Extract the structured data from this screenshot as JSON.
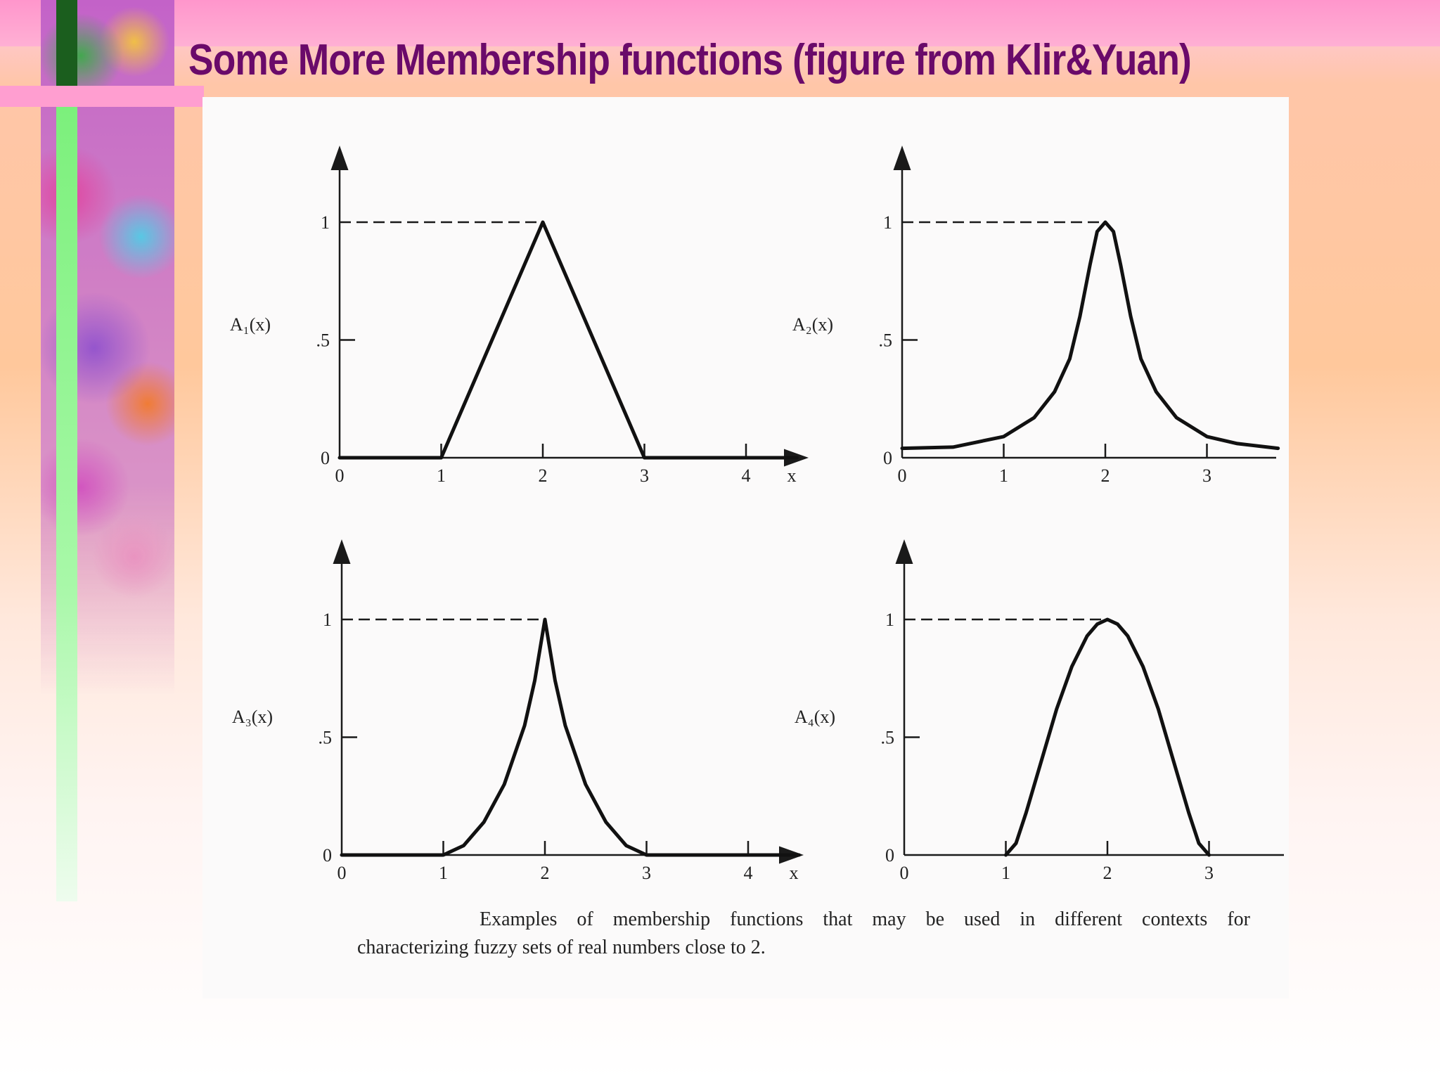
{
  "slide": {
    "title": "Some More Membership functions (figure from Klir&Yuan)"
  },
  "figure": {
    "caption_line1": "Examples of membership functions that may be used in different contexts for",
    "caption_line2": "characterizing fuzzy sets of real numbers close to 2."
  },
  "chart_data": [
    {
      "type": "line",
      "name": "A1(x)",
      "ylabel": "A₁(x)",
      "xlabel": "x",
      "x_ticks": [
        "0",
        "1",
        "2",
        "3",
        "4"
      ],
      "y_ticks": [
        "0",
        ".5",
        "1"
      ],
      "xlim": [
        0,
        4.5
      ],
      "ylim": [
        0,
        1
      ],
      "x_label_shown": true,
      "dashed_peak_guide": true,
      "points": [
        [
          0,
          0
        ],
        [
          1,
          0
        ],
        [
          2,
          1
        ],
        [
          3,
          0
        ],
        [
          4.5,
          0
        ]
      ]
    },
    {
      "type": "line",
      "name": "A2(x)",
      "ylabel": "A₂(x)",
      "xlabel": "",
      "x_ticks": [
        "0",
        "1",
        "2",
        "3"
      ],
      "y_ticks": [
        "0",
        ".5",
        "1"
      ],
      "xlim": [
        0,
        3.7
      ],
      "ylim": [
        0,
        1
      ],
      "x_label_shown": false,
      "dashed_peak_guide": true,
      "points": [
        [
          0,
          0.04
        ],
        [
          0.5,
          0.045
        ],
        [
          1,
          0.09
        ],
        [
          1.3,
          0.17
        ],
        [
          1.5,
          0.28
        ],
        [
          1.65,
          0.42
        ],
        [
          1.75,
          0.6
        ],
        [
          1.85,
          0.82
        ],
        [
          1.92,
          0.96
        ],
        [
          2,
          1
        ],
        [
          2.08,
          0.96
        ],
        [
          2.15,
          0.82
        ],
        [
          2.25,
          0.6
        ],
        [
          2.35,
          0.42
        ],
        [
          2.5,
          0.28
        ],
        [
          2.7,
          0.17
        ],
        [
          3,
          0.09
        ],
        [
          3.3,
          0.06
        ],
        [
          3.7,
          0.04
        ]
      ]
    },
    {
      "type": "line",
      "name": "A3(x)",
      "ylabel": "A₃(x)",
      "xlabel": "x",
      "x_ticks": [
        "0",
        "1",
        "2",
        "3",
        "4"
      ],
      "y_ticks": [
        "0",
        ".5",
        "1"
      ],
      "xlim": [
        0,
        4.5
      ],
      "ylim": [
        0,
        1
      ],
      "x_label_shown": true,
      "dashed_peak_guide": true,
      "points": [
        [
          0,
          0
        ],
        [
          1,
          0
        ],
        [
          1.2,
          0.04
        ],
        [
          1.4,
          0.14
        ],
        [
          1.6,
          0.3
        ],
        [
          1.8,
          0.55
        ],
        [
          1.9,
          0.74
        ],
        [
          2,
          1
        ],
        [
          2.1,
          0.74
        ],
        [
          2.2,
          0.55
        ],
        [
          2.4,
          0.3
        ],
        [
          2.6,
          0.14
        ],
        [
          2.8,
          0.04
        ],
        [
          3,
          0
        ],
        [
          4.5,
          0
        ]
      ]
    },
    {
      "type": "line",
      "name": "A4(x)",
      "ylabel": "A₄(x)",
      "xlabel": "",
      "x_ticks": [
        "0",
        "1",
        "2",
        "3"
      ],
      "y_ticks": [
        "0",
        ".5",
        "1"
      ],
      "xlim": [
        0,
        3.7
      ],
      "ylim": [
        0,
        1
      ],
      "x_label_shown": false,
      "dashed_peak_guide": true,
      "points": [
        [
          1,
          0
        ],
        [
          1.1,
          0.05
        ],
        [
          1.2,
          0.18
        ],
        [
          1.35,
          0.4
        ],
        [
          1.5,
          0.62
        ],
        [
          1.65,
          0.8
        ],
        [
          1.8,
          0.93
        ],
        [
          1.9,
          0.98
        ],
        [
          2,
          1
        ],
        [
          2.1,
          0.98
        ],
        [
          2.2,
          0.93
        ],
        [
          2.35,
          0.8
        ],
        [
          2.5,
          0.62
        ],
        [
          2.65,
          0.4
        ],
        [
          2.8,
          0.18
        ],
        [
          2.9,
          0.05
        ],
        [
          3,
          0
        ]
      ]
    }
  ]
}
